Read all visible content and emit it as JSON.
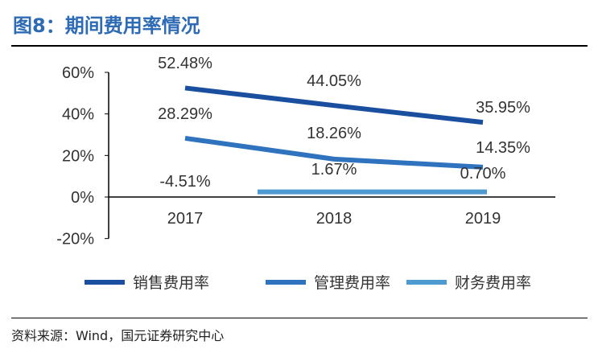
{
  "title": "图8：期间费用率情况",
  "source": "资料来源：Wind，国元证券研究中心",
  "chart_data": {
    "type": "line",
    "categories": [
      "2017",
      "2018",
      "2019"
    ],
    "ylim": [
      -20,
      60
    ],
    "yticks": [
      "60%",
      "40%",
      "20%",
      "0%",
      "-20%"
    ],
    "ytick_values": [
      60,
      40,
      20,
      0,
      -20
    ],
    "grid": false,
    "legend_position": "bottom",
    "series": [
      {
        "name": "销售费用率",
        "values": [
          52.48,
          44.05,
          35.95
        ],
        "labels": [
          "52.48%",
          "44.05%",
          "35.95%"
        ],
        "color": "#1a4fa0"
      },
      {
        "name": "管理费用率",
        "values": [
          28.29,
          18.26,
          14.35
        ],
        "labels": [
          "28.29%",
          "18.26%",
          "14.35%"
        ],
        "color": "#2f72bd"
      },
      {
        "name": "财务费用率",
        "values": [
          -4.51,
          1.67,
          0.7
        ],
        "labels": [
          "-4.51%",
          "1.67%",
          "0.70%"
        ],
        "color": "#4d9bd0"
      }
    ]
  }
}
